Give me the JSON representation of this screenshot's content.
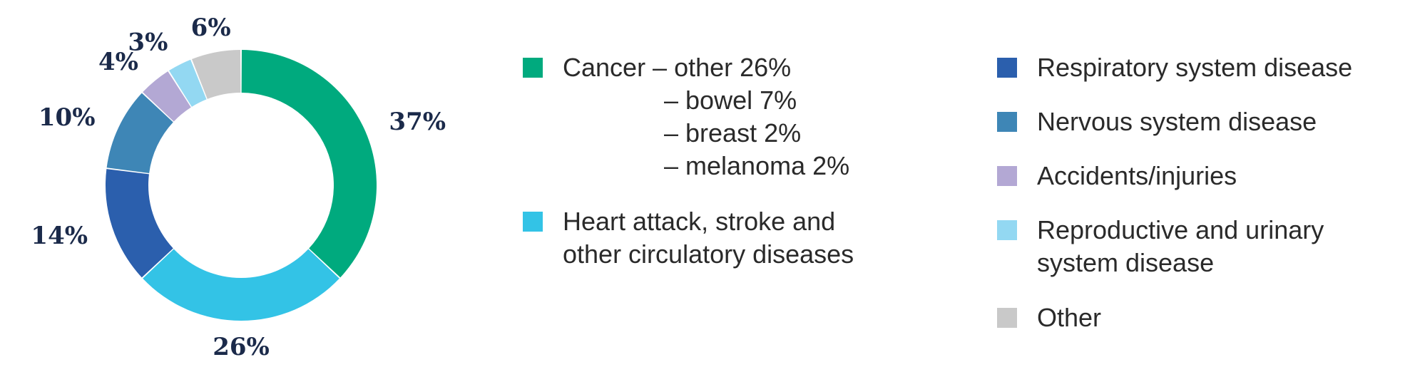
{
  "chart_data": {
    "type": "pie",
    "donut": true,
    "slices": [
      {
        "label": "Cancer",
        "value": 37,
        "display": "37%",
        "color": "#00aa7e"
      },
      {
        "label": "Heart attack, stroke and other circulatory diseases",
        "value": 26,
        "display": "26%",
        "color": "#33c3e6"
      },
      {
        "label": "Respiratory system disease",
        "value": 14,
        "display": "14%",
        "color": "#2b5fad"
      },
      {
        "label": "Nervous system disease",
        "value": 10,
        "display": "10%",
        "color": "#3e86b6"
      },
      {
        "label": "Accidents/injuries",
        "value": 4,
        "display": "4%",
        "color": "#b3a8d4"
      },
      {
        "label": "Reproductive and urinary system disease",
        "value": 3,
        "display": "3%",
        "color": "#93d8f2"
      },
      {
        "label": "Other",
        "value": 6,
        "display": "6%",
        "color": "#c9c9c9"
      }
    ],
    "legend": {
      "cancer": {
        "line1": "Cancer – other 26%",
        "sub": [
          "– bowel 7%",
          "– breast 2%",
          "– melanoma 2%"
        ],
        "color": "#00aa7e"
      },
      "circulatory": {
        "lines": [
          "Heart attack, stroke and",
          "other circulatory diseases"
        ],
        "color": "#33c3e6"
      },
      "respiratory": {
        "lines": [
          "Respiratory system disease"
        ],
        "color": "#2b5fad"
      },
      "nervous": {
        "lines": [
          "Nervous system disease"
        ],
        "color": "#3e86b6"
      },
      "accidents": {
        "lines": [
          "Accidents/injuries"
        ],
        "color": "#b3a8d4"
      },
      "reproductive": {
        "lines": [
          "Reproductive and urinary",
          "system disease"
        ],
        "color": "#93d8f2"
      },
      "other": {
        "lines": [
          "Other"
        ],
        "color": "#c9c9c9"
      }
    }
  }
}
